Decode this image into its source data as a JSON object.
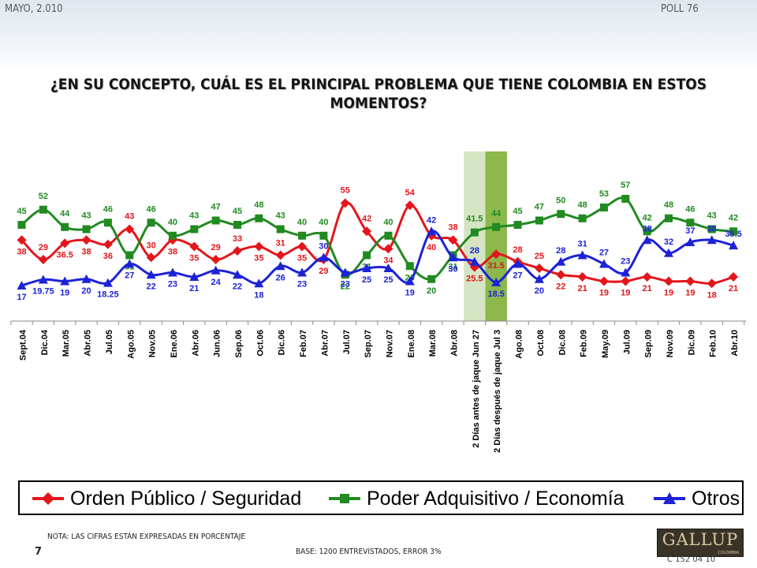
{
  "header": {
    "date": "MAYO, 2.010",
    "poll": "POLL 76"
  },
  "chart_data": {
    "type": "line",
    "title": "¿EN SU CONCEPTO, CUÁL ES EL PRINCIPAL PROBLEMA QUE TIENE COLOMBIA EN ESTOS MOMENTOS?",
    "categories": [
      "Sept.04",
      "Dic.04",
      "Mar.05",
      "Abr.05",
      "Jul.05",
      "Ago.05",
      "Nov.05",
      "Ene.06",
      "Abr.06",
      "Jun.06",
      "Sep.06",
      "Oct.06",
      "Dic.06",
      "Feb.07",
      "Abr.07",
      "Jul.07",
      "Sep.07",
      "Nov.07",
      "Ene.08",
      "Mar.08",
      "Abr.08",
      "2 Días antes de jaque Jun 27",
      "2 Días después de jaque Jul 3",
      "Ago.08",
      "Oct.08",
      "Dic.08",
      "Feb.09",
      "May.09",
      "Jul.09",
      "Sep.09",
      "Nov.09",
      "Dic.09",
      "Feb.10",
      "Abr.10"
    ],
    "series": [
      {
        "name": "Orden Público / Seguridad",
        "color": "#e3161b",
        "marker": "diamond",
        "values": [
          38,
          29,
          36.5,
          38,
          36,
          43,
          30,
          38,
          35,
          29,
          33,
          35,
          31,
          35,
          29,
          55,
          42,
          34,
          54,
          40,
          38,
          25.5,
          31.5,
          28,
          25,
          22,
          21,
          19,
          19,
          21,
          19,
          19,
          18,
          21
        ],
        "labels": [
          "38",
          "29",
          "36.5",
          "38",
          "36",
          "43",
          "30",
          "38",
          "35",
          "29",
          "33",
          "35",
          "31",
          "35",
          "29",
          "55",
          "42",
          "34",
          "54",
          "40",
          "38",
          "25.5",
          "31.5",
          "28",
          "25",
          "22",
          "21",
          "19",
          "19",
          "21",
          "19",
          "19",
          "18",
          "21"
        ]
      },
      {
        "name": "Poder Adquisitivo / Economía",
        "color": "#218a21",
        "marker": "square",
        "values": [
          45,
          52,
          44,
          43,
          46,
          31,
          46,
          40,
          43,
          47,
          45,
          48,
          43,
          40,
          40,
          22,
          31,
          40,
          26,
          20,
          31,
          41.5,
          44,
          45,
          47,
          50,
          48,
          53,
          57,
          42,
          48,
          46,
          43,
          42
        ],
        "labels": [
          "45",
          "52",
          "44",
          "43",
          "46",
          "31",
          "46",
          "40",
          "43",
          "47",
          "45",
          "48",
          "43",
          "40",
          "40",
          "22",
          "31",
          "40",
          "26",
          "20",
          "31",
          "41.5",
          "44",
          "45",
          "47",
          "50",
          "48",
          "53",
          "57",
          "42",
          "48",
          "46",
          "43",
          "42"
        ]
      },
      {
        "name": "Otros",
        "color": "#1c22d6",
        "marker": "triangle",
        "values": [
          17,
          19.75,
          19,
          20,
          18.25,
          27,
          22,
          23,
          21,
          24,
          22,
          18,
          26,
          23,
          30,
          23,
          25,
          25,
          19,
          42,
          30,
          28,
          18.5,
          27,
          20,
          28,
          31,
          27,
          23,
          38,
          32,
          37,
          38,
          35.5
        ],
        "labels": [
          "17",
          "19.75",
          "19",
          "20",
          "18.25",
          "27",
          "22",
          "23",
          "21",
          "24",
          "22",
          "18",
          "26",
          "23",
          "30",
          "23",
          "25",
          "25",
          "19",
          "42",
          "30",
          "28",
          "18.5",
          "27",
          "20",
          "28",
          "31",
          "27",
          "23",
          "38",
          "32",
          "37",
          "38",
          "35.5"
        ]
      }
    ],
    "highlight": [
      {
        "category": "2 Días antes de jaque Jun 27",
        "color": "#d5e5c3"
      },
      {
        "category": "2 Días después de jaque Jul 3",
        "color": "#8cb84c"
      }
    ],
    "ylim": [
      0,
      65
    ],
    "legend": "bottom",
    "grid": false
  },
  "footer": {
    "note": "NOTA: LAS CIFRAS ESTÁN EXPRESADAS EN PORCENTAJE",
    "page": "7",
    "base": "BASE: 1200 ENTREVISTADOS, ERROR 3%",
    "logo": "GALLUP",
    "logo_sub": "COLOMBIA",
    "code": "C 152 04 10"
  }
}
